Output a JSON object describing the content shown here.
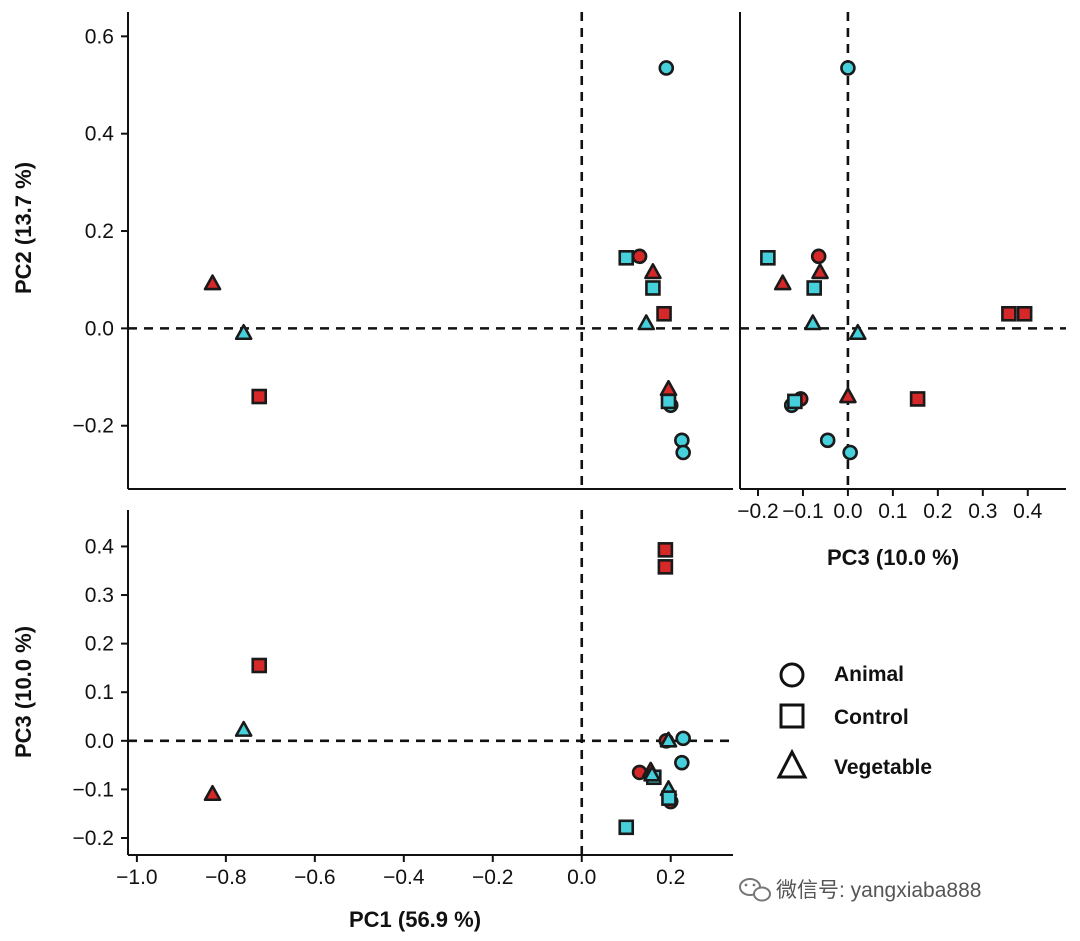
{
  "colors": {
    "red": "#d62828",
    "cyan": "#45d0dc",
    "stroke": "#1a1a1a",
    "axis": "#111111"
  },
  "chart_data": [
    {
      "id": "pc1_pc2",
      "type": "scatter",
      "xlabel": "",
      "ylabel": "PC2 (13.7 %)",
      "xlim": [
        -1.02,
        0.34
      ],
      "ylim": [
        -0.33,
        0.65
      ],
      "x_ticks": [],
      "y_ticks": [
        {
          "v": 0.6,
          "label": "0.6"
        },
        {
          "v": 0.4,
          "label": "0.4"
        },
        {
          "v": 0.2,
          "label": "0.2"
        },
        {
          "v": 0.0,
          "label": "0.0"
        },
        {
          "v": -0.2,
          "label": "−0.2"
        }
      ],
      "reference_lines": {
        "x": 0,
        "y": 0
      },
      "points": [
        {
          "x": 0.19,
          "y": 0.535,
          "shape": "circle",
          "fill": "cyan"
        },
        {
          "x": 0.13,
          "y": 0.148,
          "shape": "circle",
          "fill": "red"
        },
        {
          "x": 0.1,
          "y": 0.145,
          "shape": "square",
          "fill": "cyan"
        },
        {
          "x": 0.16,
          "y": 0.115,
          "shape": "triangle",
          "fill": "red"
        },
        {
          "x": 0.16,
          "y": 0.083,
          "shape": "square",
          "fill": "cyan"
        },
        {
          "x": 0.185,
          "y": 0.03,
          "shape": "square",
          "fill": "red"
        },
        {
          "x": 0.145,
          "y": 0.01,
          "shape": "triangle",
          "fill": "cyan"
        },
        {
          "x": 0.195,
          "y": -0.125,
          "shape": "triangle",
          "fill": "red"
        },
        {
          "x": 0.2,
          "y": -0.158,
          "shape": "circle",
          "fill": "cyan"
        },
        {
          "x": 0.195,
          "y": -0.15,
          "shape": "square",
          "fill": "cyan"
        },
        {
          "x": 0.225,
          "y": -0.23,
          "shape": "circle",
          "fill": "cyan"
        },
        {
          "x": 0.228,
          "y": -0.255,
          "shape": "circle",
          "fill": "cyan"
        },
        {
          "x": -0.83,
          "y": 0.092,
          "shape": "triangle",
          "fill": "red"
        },
        {
          "x": -0.76,
          "y": -0.01,
          "shape": "triangle",
          "fill": "cyan"
        },
        {
          "x": -0.725,
          "y": -0.14,
          "shape": "square",
          "fill": "red"
        }
      ]
    },
    {
      "id": "pc3_pc2",
      "type": "scatter",
      "xlabel": "PC3 (10.0 %)",
      "ylabel": "",
      "xlim": [
        -0.24,
        0.485
      ],
      "ylim": [
        -0.33,
        0.65
      ],
      "x_ticks": [
        {
          "v": -0.2,
          "label": "−0.2"
        },
        {
          "v": -0.1,
          "label": "−0.1"
        },
        {
          "v": 0.0,
          "label": "0.0"
        },
        {
          "v": 0.1,
          "label": "0.1"
        },
        {
          "v": 0.2,
          "label": "0.2"
        },
        {
          "v": 0.3,
          "label": "0.3"
        },
        {
          "v": 0.4,
          "label": "0.4"
        }
      ],
      "y_ticks": [],
      "reference_lines": {
        "x": 0,
        "y": 0
      },
      "points": [
        {
          "x": 0.0,
          "y": 0.535,
          "shape": "circle",
          "fill": "cyan"
        },
        {
          "x": -0.178,
          "y": 0.145,
          "shape": "square",
          "fill": "cyan"
        },
        {
          "x": -0.065,
          "y": 0.148,
          "shape": "circle",
          "fill": "red"
        },
        {
          "x": -0.145,
          "y": 0.092,
          "shape": "triangle",
          "fill": "red"
        },
        {
          "x": -0.062,
          "y": 0.115,
          "shape": "triangle",
          "fill": "red"
        },
        {
          "x": -0.075,
          "y": 0.083,
          "shape": "square",
          "fill": "cyan"
        },
        {
          "x": -0.078,
          "y": 0.01,
          "shape": "triangle",
          "fill": "cyan"
        },
        {
          "x": 0.022,
          "y": -0.01,
          "shape": "triangle",
          "fill": "cyan"
        },
        {
          "x": 0.358,
          "y": 0.03,
          "shape": "square",
          "fill": "red"
        },
        {
          "x": 0.393,
          "y": 0.03,
          "shape": "square",
          "fill": "red"
        },
        {
          "x": -0.105,
          "y": -0.145,
          "shape": "circle",
          "fill": "red"
        },
        {
          "x": -0.125,
          "y": -0.158,
          "shape": "circle",
          "fill": "cyan"
        },
        {
          "x": -0.118,
          "y": -0.15,
          "shape": "square",
          "fill": "cyan"
        },
        {
          "x": 0.0,
          "y": -0.14,
          "shape": "triangle",
          "fill": "red"
        },
        {
          "x": 0.155,
          "y": -0.145,
          "shape": "square",
          "fill": "red"
        },
        {
          "x": -0.045,
          "y": -0.23,
          "shape": "circle",
          "fill": "cyan"
        },
        {
          "x": 0.005,
          "y": -0.255,
          "shape": "circle",
          "fill": "cyan"
        }
      ]
    },
    {
      "id": "pc1_pc3",
      "type": "scatter",
      "xlabel": "PC1 (56.9 %)",
      "ylabel": "PC3 (10.0 %)",
      "xlim": [
        -1.02,
        0.34
      ],
      "ylim": [
        -0.235,
        0.475
      ],
      "x_ticks": [
        {
          "v": -1.0,
          "label": "−1.0"
        },
        {
          "v": -0.8,
          "label": "−0.8"
        },
        {
          "v": -0.6,
          "label": "−0.6"
        },
        {
          "v": -0.4,
          "label": "−0.4"
        },
        {
          "v": -0.2,
          "label": "−0.2"
        },
        {
          "v": 0.0,
          "label": "0.0"
        },
        {
          "v": 0.2,
          "label": "0.2"
        }
      ],
      "y_ticks": [
        {
          "v": 0.4,
          "label": "0.4"
        },
        {
          "v": 0.3,
          "label": "0.3"
        },
        {
          "v": 0.2,
          "label": "0.2"
        },
        {
          "v": 0.1,
          "label": "0.1"
        },
        {
          "v": 0.0,
          "label": "0.0"
        },
        {
          "v": -0.1,
          "label": "−0.1"
        },
        {
          "v": -0.2,
          "label": "−0.2"
        }
      ],
      "reference_lines": {
        "x": 0,
        "y": 0
      },
      "points": [
        {
          "x": 0.188,
          "y": 0.393,
          "shape": "square",
          "fill": "red"
        },
        {
          "x": 0.188,
          "y": 0.358,
          "shape": "square",
          "fill": "red"
        },
        {
          "x": -0.725,
          "y": 0.155,
          "shape": "square",
          "fill": "red"
        },
        {
          "x": -0.76,
          "y": 0.022,
          "shape": "triangle",
          "fill": "cyan"
        },
        {
          "x": -0.83,
          "y": -0.11,
          "shape": "triangle",
          "fill": "red"
        },
        {
          "x": 0.19,
          "y": 0.0,
          "shape": "circle",
          "fill": "red"
        },
        {
          "x": 0.195,
          "y": 0.0,
          "shape": "triangle",
          "fill": "cyan"
        },
        {
          "x": 0.228,
          "y": 0.005,
          "shape": "circle",
          "fill": "cyan"
        },
        {
          "x": 0.225,
          "y": -0.045,
          "shape": "circle",
          "fill": "cyan"
        },
        {
          "x": 0.13,
          "y": -0.065,
          "shape": "circle",
          "fill": "red"
        },
        {
          "x": 0.155,
          "y": -0.062,
          "shape": "triangle",
          "fill": "red"
        },
        {
          "x": 0.162,
          "y": -0.075,
          "shape": "square",
          "fill": "cyan"
        },
        {
          "x": 0.158,
          "y": -0.07,
          "shape": "triangle",
          "fill": "cyan"
        },
        {
          "x": 0.195,
          "y": -0.1,
          "shape": "triangle",
          "fill": "cyan"
        },
        {
          "x": 0.2,
          "y": -0.125,
          "shape": "circle",
          "fill": "red"
        },
        {
          "x": 0.196,
          "y": -0.118,
          "shape": "square",
          "fill": "cyan"
        },
        {
          "x": 0.1,
          "y": -0.178,
          "shape": "square",
          "fill": "cyan"
        }
      ]
    }
  ],
  "legend": {
    "items": [
      {
        "label": "Animal",
        "shape": "circle"
      },
      {
        "label": "Control",
        "shape": "square"
      },
      {
        "label": "Vegetable",
        "shape": "triangle"
      }
    ]
  },
  "watermark": {
    "text": "微信号: yangxiaba888",
    "icon": "wechat-icon"
  }
}
